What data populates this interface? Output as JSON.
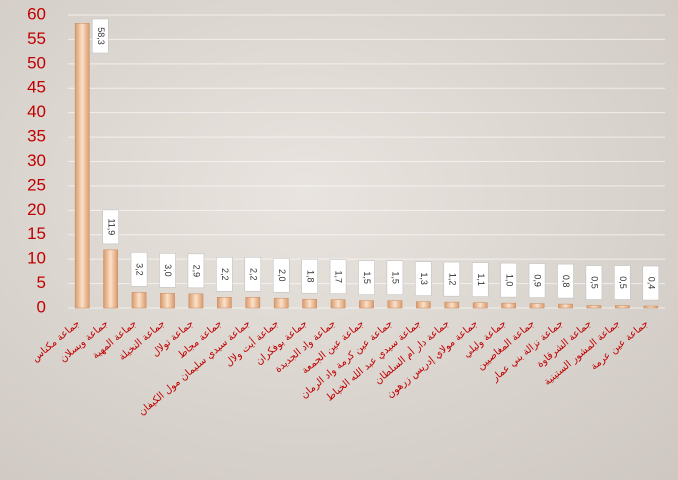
{
  "chart_data": {
    "type": "bar",
    "categories": [
      "جماعة مكناس",
      "جماعة ويسلان",
      "جماعة المهية",
      "جماعة النخيلة",
      "جماعة تولال",
      "جماعة مجاط",
      "جماعة سيدي سليمان مول الكيفان",
      "جماعة أيت ولال",
      "جماعة بوفكران",
      "جماعة واد الجديدة",
      "جماعة عين الجمعة",
      "جماعة عين كرمة واد الرمان",
      "جماعة سيدي عبد الله الخياط",
      "جماعة دار أم السلطان",
      "جماعة مولاي إدريس زرهون",
      "جماعة وليلي",
      "جماعة المغاصيين",
      "جماعة نزالة بني عمار",
      "جماعة الشرقاوة",
      "جماعة المشور الستينية",
      "جماعة عين عرمة"
    ],
    "values": [
      58.3,
      11.9,
      3.2,
      3.0,
      2.9,
      2.2,
      2.2,
      2.0,
      1.8,
      1.7,
      1.5,
      1.5,
      1.3,
      1.2,
      1.1,
      1.0,
      0.9,
      0.8,
      0.5,
      0.5,
      0.4
    ],
    "value_labels": [
      "58,3",
      "11,9",
      "3,2",
      "3,0",
      "2,9",
      "2,2",
      "2,2",
      "2,0",
      "1,8",
      "1,7",
      "1,5",
      "1,5",
      "1,3",
      "1,2",
      "1,1",
      "1,0",
      "0,9",
      "0,8",
      "0,5",
      "0,5",
      "0,4"
    ],
    "color": "#f2c19a",
    "ylim": [
      0,
      60
    ],
    "yticks": [
      0,
      5,
      10,
      15,
      20,
      25,
      30,
      35,
      40,
      45,
      50,
      55,
      60
    ],
    "grid": true
  }
}
